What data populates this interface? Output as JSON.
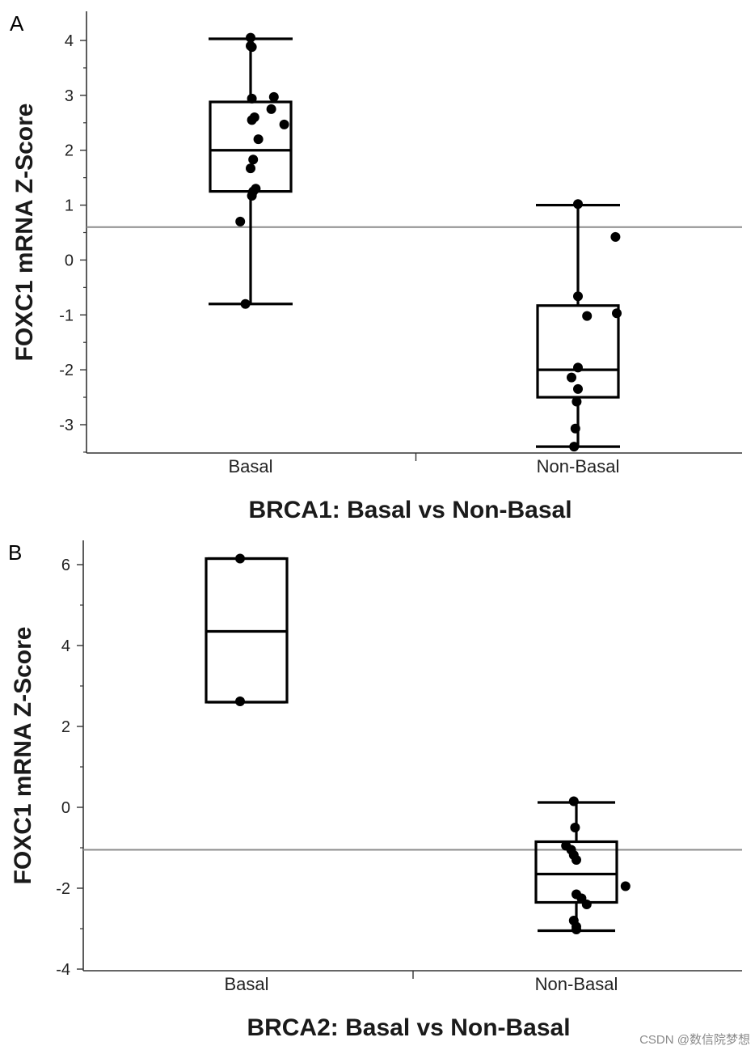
{
  "chart_data": [
    {
      "type": "box",
      "panel_label": "A",
      "title": "",
      "xlabel": "BRCA1: Basal vs Non-Basal",
      "ylabel": "FOXC1 mRNA Z-Score",
      "ylim": [
        -3.5,
        4.5
      ],
      "yticks": [
        4,
        3,
        2,
        1,
        0,
        -1,
        -2,
        -3
      ],
      "ytick_labels": [
        "4",
        "3",
        "2",
        "1",
        "0",
        "-1",
        "-2",
        "-3"
      ],
      "reference_line": 0.6,
      "categories": [
        "Basal",
        "Non-Basal"
      ],
      "boxes": [
        {
          "name": "Basal",
          "whisker_low": -0.8,
          "q1": 1.25,
          "median": 2.0,
          "q3": 2.88,
          "whisker_high": 4.03,
          "points": [
            4.05,
            3.9,
            3.88,
            2.97,
            2.94,
            2.75,
            2.6,
            2.55,
            2.47,
            2.2,
            1.83,
            1.67,
            1.3,
            1.25,
            1.17,
            0.7,
            -0.8
          ],
          "jitter": [
            0.0,
            0.0,
            0.01,
            0.18,
            0.01,
            0.16,
            0.03,
            0.01,
            0.26,
            0.06,
            0.02,
            0.0,
            0.04,
            0.02,
            0.01,
            -0.08,
            -0.04
          ]
        },
        {
          "name": "Non-Basal",
          "whisker_low": -3.4,
          "q1": -2.5,
          "median": -2.0,
          "q3": -0.83,
          "whisker_high": 1.0,
          "points": [
            1.02,
            0.42,
            -0.66,
            -0.97,
            -1.02,
            -1.96,
            -2.14,
            -2.35,
            -2.58,
            -3.07,
            -3.4
          ],
          "jitter": [
            0.0,
            0.29,
            0.0,
            0.3,
            0.07,
            0.0,
            -0.05,
            0.0,
            -0.01,
            -0.02,
            -0.03
          ]
        }
      ]
    },
    {
      "type": "box",
      "panel_label": "B",
      "title": "",
      "xlabel": "BRCA2: Basal vs Non-Basal",
      "ylabel": "FOXC1 mRNA Z-Score",
      "ylim": [
        -4,
        6.6
      ],
      "yticks": [
        6,
        4,
        2,
        0,
        -2,
        -4
      ],
      "ytick_labels": [
        "6",
        "4",
        "2",
        "0",
        "-2",
        "-4"
      ],
      "reference_line": -1.05,
      "categories": [
        "Basal",
        "Non-Basal"
      ],
      "boxes": [
        {
          "name": "Basal",
          "whisker_low": 2.6,
          "q1": 2.6,
          "median": 4.35,
          "q3": 6.15,
          "whisker_high": 6.15,
          "points": [
            6.15,
            2.62
          ],
          "jitter": [
            -0.05,
            -0.05
          ]
        },
        {
          "name": "Non-Basal",
          "whisker_low": -3.05,
          "q1": -2.35,
          "median": -1.65,
          "q3": -0.85,
          "whisker_high": 0.12,
          "points": [
            0.15,
            -0.5,
            -0.95,
            -1.05,
            -1.18,
            -1.3,
            -1.95,
            -2.15,
            -2.25,
            -2.4,
            -2.8,
            -2.95,
            -3.02
          ],
          "jitter": [
            -0.02,
            -0.01,
            -0.08,
            -0.04,
            -0.02,
            0.0,
            0.38,
            0.0,
            0.04,
            0.08,
            -0.02,
            0.0,
            0.0
          ]
        }
      ]
    }
  ],
  "watermark": "CSDN @数信院梦想"
}
